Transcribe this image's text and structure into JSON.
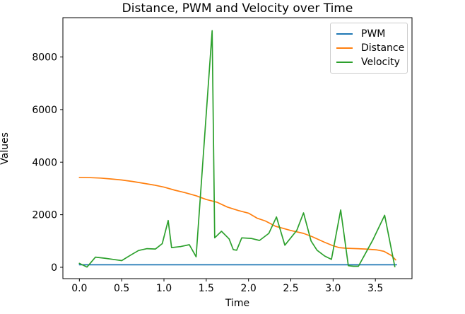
{
  "chart_data": {
    "type": "line",
    "title": "Distance, PWM and Velocity over Time",
    "xlabel": "Time",
    "ylabel": "Values",
    "xlim": [
      -0.195,
      3.933
    ],
    "ylim": [
      -432,
      9496
    ],
    "xticks": [
      0.0,
      0.5,
      1.0,
      1.5,
      2.0,
      2.5,
      3.0,
      3.5
    ],
    "xtick_labels": [
      "0.0",
      "0.5",
      "1.0",
      "1.5",
      "2.0",
      "2.5",
      "3.0",
      "3.5"
    ],
    "yticks": [
      0,
      2000,
      4000,
      6000,
      8000
    ],
    "ytick_labels": [
      "0",
      "2000",
      "4000",
      "6000",
      "8000"
    ],
    "grid": false,
    "legend_position": "upper right",
    "background_color": "#ffffff",
    "spine_color": "#000000",
    "series": [
      {
        "name": "PWM",
        "color": "#1f77b4",
        "x": [
          0.0,
          3.75
        ],
        "values": [
          95,
          95
        ]
      },
      {
        "name": "Distance",
        "color": "#ff7f0e",
        "x": [
          0.0,
          0.13,
          0.25,
          0.38,
          0.5,
          0.63,
          0.75,
          0.88,
          1.0,
          1.13,
          1.25,
          1.38,
          1.5,
          1.63,
          1.75,
          1.88,
          2.0,
          2.1,
          2.2,
          2.32,
          2.4,
          2.5,
          2.65,
          2.75,
          2.9,
          3.0,
          3.07,
          3.15,
          3.38,
          3.52,
          3.6,
          3.69,
          3.74
        ],
        "values": [
          3420,
          3410,
          3395,
          3360,
          3320,
          3265,
          3200,
          3130,
          3050,
          2930,
          2840,
          2720,
          2580,
          2470,
          2290,
          2160,
          2060,
          1870,
          1760,
          1560,
          1490,
          1400,
          1290,
          1170,
          950,
          820,
          750,
          725,
          695,
          660,
          610,
          450,
          280
        ]
      },
      {
        "name": "Velocity",
        "color": "#2ca02c",
        "x": [
          0.0,
          0.09,
          0.19,
          0.3,
          0.4,
          0.5,
          0.6,
          0.7,
          0.8,
          0.9,
          0.98,
          1.05,
          1.09,
          1.2,
          1.3,
          1.38,
          1.57,
          1.6,
          1.68,
          1.77,
          1.82,
          1.86,
          1.92,
          2.03,
          2.13,
          2.24,
          2.33,
          2.43,
          2.57,
          2.65,
          2.74,
          2.81,
          2.9,
          2.98,
          3.09,
          3.18,
          3.24,
          3.3,
          3.47,
          3.61,
          3.73
        ],
        "values": [
          150,
          10,
          385,
          345,
          300,
          255,
          450,
          640,
          710,
          695,
          900,
          1780,
          750,
          790,
          860,
          400,
          9000,
          1120,
          1370,
          1080,
          670,
          650,
          1120,
          1100,
          1020,
          1290,
          1915,
          840,
          1400,
          2070,
          1000,
          650,
          430,
          300,
          2180,
          60,
          40,
          40,
          1040,
          1980,
          20
        ]
      }
    ]
  }
}
